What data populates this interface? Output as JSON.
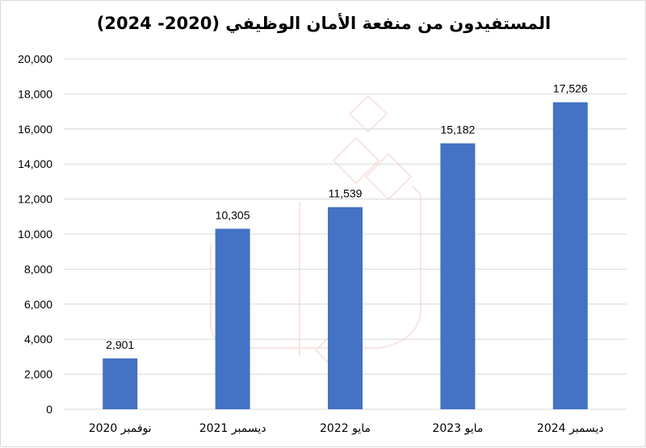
{
  "chart_data": {
    "type": "bar",
    "title": "المستفيدون من منفعة الأمان الوظيفي (2020- 2024)",
    "categories": [
      "نوفمبر 2020",
      "ديسمبر 2021",
      "مايو 2022",
      "مايو 2023",
      "ديسمبر 2024"
    ],
    "values": [
      2901,
      10305,
      11539,
      15182,
      17526
    ],
    "data_labels": [
      "2,901",
      "10,305",
      "11,539",
      "15,182",
      "17,526"
    ],
    "ylim": [
      0,
      20000
    ],
    "yticks": [
      0,
      2000,
      4000,
      6000,
      8000,
      10000,
      12000,
      14000,
      16000,
      18000,
      20000
    ],
    "ytick_labels": [
      "0",
      "2,000",
      "4,000",
      "6,000",
      "8,000",
      "10,000",
      "12,000",
      "14,000",
      "16,000",
      "18,000",
      "20,000"
    ],
    "xlabel": "",
    "ylabel": "",
    "grid": true,
    "bar_color": "#4472C4",
    "gridline_color": "#D9D9D9"
  }
}
